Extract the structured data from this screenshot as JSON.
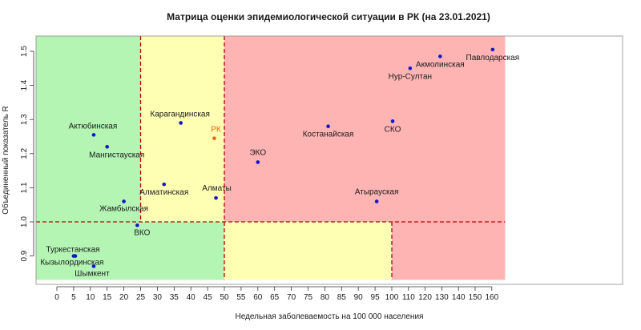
{
  "chart_data": {
    "type": "scatter",
    "title": "Матрица оценки эпидемиологической ситуации в РК (на 23.01.2021)",
    "xlabel": "Недельная заболеваемость на 100 000 населения",
    "ylabel": "Объединенный показатель R",
    "xlim": [
      -7,
      168
    ],
    "ylim": [
      0.83,
      1.55
    ],
    "xticks": [
      0,
      5,
      10,
      15,
      20,
      25,
      30,
      35,
      40,
      45,
      50,
      55,
      60,
      65,
      70,
      75,
      80,
      85,
      90,
      95,
      100,
      110,
      120,
      130,
      140,
      150,
      160
    ],
    "yticks": [
      0.9,
      1.0,
      1.1,
      1.2,
      1.3,
      1.4,
      1.5
    ],
    "ytick_labels": [
      "0.9",
      "1.0",
      "1.1",
      "1.2",
      "1.3",
      "1.4",
      "1.5"
    ],
    "grid": false,
    "zones": [
      {
        "x": [
          -7,
          25
        ],
        "y": [
          1.0,
          1.55
        ],
        "color": "#b4f5b4"
      },
      {
        "x": [
          25,
          50
        ],
        "y": [
          1.0,
          1.55
        ],
        "color": "#ffffb4"
      },
      {
        "x": [
          50,
          168
        ],
        "y": [
          1.0,
          1.55
        ],
        "color": "#ffb4b4"
      },
      {
        "x": [
          -7,
          50
        ],
        "y": [
          0.83,
          1.0
        ],
        "color": "#b4f5b4"
      },
      {
        "x": [
          50,
          100
        ],
        "y": [
          0.83,
          1.0
        ],
        "color": "#ffffb4"
      },
      {
        "x": [
          100,
          168
        ],
        "y": [
          0.83,
          1.0
        ],
        "color": "#ffb4b4"
      }
    ],
    "threshold_lines": [
      {
        "orientation": "vertical",
        "x": 25,
        "y": [
          1.0,
          1.55
        ]
      },
      {
        "orientation": "vertical",
        "x": 50,
        "y": [
          0.83,
          1.55
        ]
      },
      {
        "orientation": "vertical",
        "x": 100,
        "y": [
          0.83,
          1.0
        ]
      },
      {
        "orientation": "horizontal",
        "y": 1.0,
        "x": [
          -7,
          168
        ]
      }
    ],
    "line_color": "#c00000",
    "point_color": "#1515c8",
    "highlight_color": "#e8650a",
    "points": [
      {
        "label": "Павлодарская",
        "x": 160.5,
        "y": 1.505,
        "anchor": "middle",
        "highlight": false
      },
      {
        "label": "Акмолинская",
        "x": 129,
        "y": 1.485,
        "anchor": "middle",
        "highlight": false
      },
      {
        "label": "Нур-Султан",
        "x": 111,
        "y": 1.45,
        "anchor": "middle",
        "highlight": false
      },
      {
        "label": "СКО",
        "x": 100.5,
        "y": 1.295,
        "anchor": "middle",
        "highlight": false
      },
      {
        "label": "Костанайская",
        "x": 81,
        "y": 1.28,
        "anchor": "middle",
        "highlight": false
      },
      {
        "label": "ЭКО",
        "x": 60,
        "y": 1.175,
        "anchor": "middle",
        "highlight": false
      },
      {
        "label": "Атырауская",
        "x": 95.5,
        "y": 1.06,
        "anchor": "middle",
        "highlight": false
      },
      {
        "label": "Карагандинская",
        "x": 37,
        "y": 1.29,
        "anchor": "middle",
        "highlight": false
      },
      {
        "label": "РК",
        "x": 47,
        "y": 1.245,
        "anchor": "middle",
        "highlight": true
      },
      {
        "label": "Алматинская",
        "x": 32,
        "y": 1.11,
        "anchor": "middle",
        "highlight": false
      },
      {
        "label": "Алматы",
        "x": 47.5,
        "y": 1.07,
        "anchor": "middle",
        "highlight": false
      },
      {
        "label": "Актюбинская",
        "x": 11,
        "y": 1.255,
        "anchor": "middle",
        "highlight": false
      },
      {
        "label": "Мангистауская",
        "x": 15,
        "y": 1.22,
        "anchor": "middle",
        "highlight": false
      },
      {
        "label": "Жамбылская",
        "x": 20,
        "y": 1.06,
        "anchor": "middle",
        "highlight": false
      },
      {
        "label": "ВКО",
        "x": 24,
        "y": 0.99,
        "anchor": "middle",
        "highlight": false
      },
      {
        "label": "Туркестанская",
        "x": 5.5,
        "y": 0.9,
        "anchor": "middle",
        "highlight": false
      },
      {
        "label": "Кызылординская",
        "x": 5,
        "y": 0.9,
        "anchor": "middle",
        "highlight": false
      },
      {
        "label": "Шымкент",
        "x": 11,
        "y": 0.87,
        "anchor": "middle",
        "highlight": false
      }
    ]
  }
}
